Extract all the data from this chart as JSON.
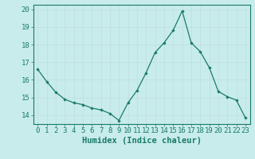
{
  "x": [
    0,
    1,
    2,
    3,
    4,
    5,
    6,
    7,
    8,
    9,
    10,
    11,
    12,
    13,
    14,
    15,
    16,
    17,
    18,
    19,
    20,
    21,
    22,
    23
  ],
  "y": [
    16.6,
    15.9,
    15.3,
    14.9,
    14.7,
    14.6,
    14.4,
    14.3,
    14.1,
    13.7,
    14.7,
    15.4,
    16.4,
    17.55,
    18.1,
    18.8,
    19.9,
    18.1,
    17.6,
    16.7,
    15.35,
    15.05,
    14.85,
    13.85
  ],
  "line_color": "#1a7a6a",
  "marker": "D",
  "marker_size": 2.2,
  "bg_color": "#c8eceb",
  "grid_major_color": "#c0dedd",
  "grid_minor_color": "#b8d8d6",
  "xlabel": "Humidex (Indice chaleur)",
  "ylabel": "",
  "xlim": [
    -0.5,
    23.5
  ],
  "ylim": [
    13.5,
    20.25
  ],
  "yticks": [
    14,
    15,
    16,
    17,
    18,
    19,
    20
  ],
  "xticks": [
    0,
    1,
    2,
    3,
    4,
    5,
    6,
    7,
    8,
    9,
    10,
    11,
    12,
    13,
    14,
    15,
    16,
    17,
    18,
    19,
    20,
    21,
    22,
    23
  ],
  "tick_color": "#1a7a6a",
  "label_color": "#1a7a6a",
  "spine_color": "#1a7a6a",
  "xlabel_fontsize": 7.5,
  "tick_fontsize": 6.5
}
